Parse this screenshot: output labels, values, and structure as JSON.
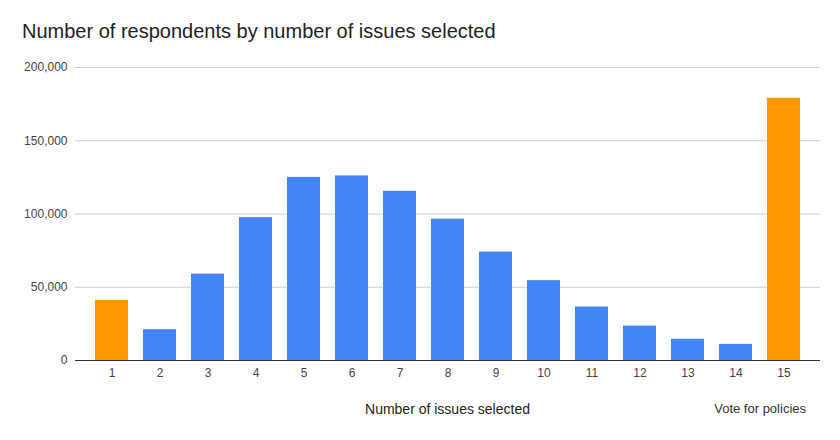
{
  "chart_data": {
    "type": "bar",
    "title": "Number of respondents by number of issues selected",
    "x_label": "Number of issues selected",
    "annotations": [
      "Vote for policies"
    ],
    "categories": [
      "1",
      "2",
      "3",
      "4",
      "5",
      "6",
      "7",
      "8",
      "9",
      "10",
      "11",
      "12",
      "13",
      "14",
      "15"
    ],
    "values": [
      41000,
      21000,
      59000,
      97500,
      125000,
      126000,
      115500,
      96500,
      74000,
      54500,
      36500,
      23500,
      14500,
      11000,
      179000
    ],
    "colors": [
      "#ff9900",
      "#4285f4",
      "#4285f4",
      "#4285f4",
      "#4285f4",
      "#4285f4",
      "#4285f4",
      "#4285f4",
      "#4285f4",
      "#4285f4",
      "#4285f4",
      "#4285f4",
      "#4285f4",
      "#4285f4",
      "#ff9900"
    ],
    "ylim": [
      0,
      200000
    ],
    "yticks": [
      0,
      {
        "value": 50000,
        "label": "50,000"
      },
      {
        "value": 100000,
        "label": "100,000"
      },
      {
        "value": 150000,
        "label": "150,000"
      },
      {
        "value": 200000,
        "label": "200,000"
      }
    ],
    "grid": true
  }
}
